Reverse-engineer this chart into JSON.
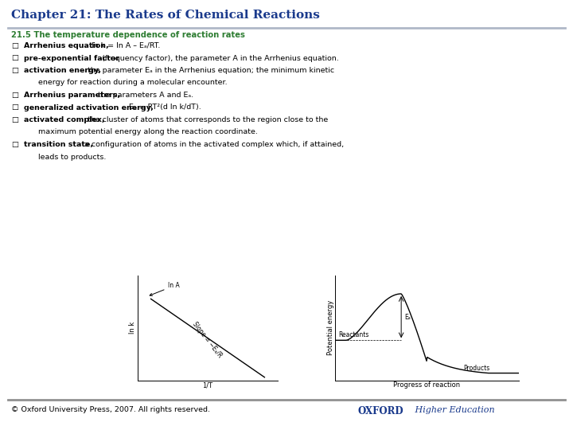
{
  "title": "Chapter 21: The Rates of Chemical Reactions",
  "title_color": "#1a3a8c",
  "title_fontsize": 11,
  "section_header": "21.5 The temperature dependence of reaction rates",
  "section_color": "#2e7d32",
  "section_fontsize": 7.2,
  "bg_color": "#ffffff",
  "header_bar_color": "#b0b8c8",
  "footer_bar_color": "#909090",
  "fontsize_body": 6.8,
  "footer_left": "© Oxford University Press, 2007. All rights reserved.",
  "footer_right_oxford": "OXFORD",
  "footer_right_he": " Higher Education",
  "plot1_xlabel": "1/T",
  "plot1_ylabel": "ln k",
  "plot2_xlabel": "Progress of reaction",
  "plot2_ylabel": "Potential energy",
  "plot2_label_reactants": "Reactants",
  "plot2_label_products": "Products"
}
